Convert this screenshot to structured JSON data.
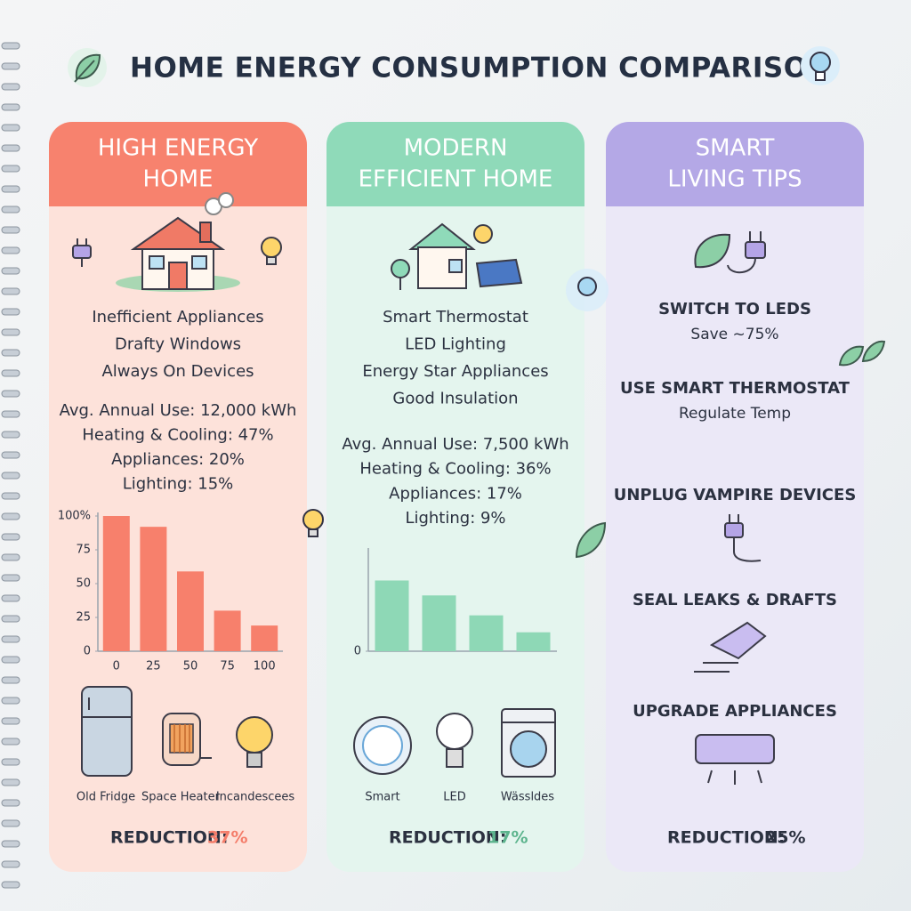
{
  "header": {
    "title": "HOME ENERGY CONSUMPTION COMPARISON"
  },
  "panels": [
    {
      "title_lines": [
        "HIGH ENERGY",
        "HOME"
      ],
      "features": [
        "Inefficient Appliances",
        "Drafty Windows",
        "Always On Devices"
      ],
      "stats": [
        "Avg. Annual Use: 12,000 kWh",
        "Heating & Cooling: 47%",
        "Appliances: 20%",
        "Lighting: 15%"
      ],
      "chart": {
        "type": "bar",
        "categories": [
          "0",
          "25",
          "50",
          "75",
          "100"
        ],
        "values": [
          100,
          92,
          59,
          30,
          19
        ],
        "color": "#f7806c",
        "ylim": [
          0,
          100
        ],
        "yticks": [
          0,
          25,
          50,
          75,
          {
            "value": 100,
            "label": "100%"
          }
        ]
      },
      "icons": [
        "Old Fridge",
        "Space Heater",
        "Incandescees"
      ],
      "reduction_label": "REDUCTION:",
      "reduction_value": "37%"
    },
    {
      "title_lines": [
        "MODERN",
        "EFFICIENT HOME"
      ],
      "features": [
        "Smart Thermostat",
        "LED Lighting",
        "Energy Star Appliances",
        "Good Insulation"
      ],
      "stats": [
        "Avg. Annual Use: 7,500 kWh",
        "Heating & Cooling: 36%",
        "Appliances: 17%",
        "Lighting: 9%"
      ],
      "chart": {
        "type": "bar",
        "categories": [
          null,
          null,
          null,
          null
        ],
        "values": [
          71,
          56,
          36,
          19
        ],
        "color": "#8ed8b6",
        "ylim": [
          0,
          100
        ],
        "yticks": [
          0
        ]
      },
      "icons": [
        "Smart",
        "LED",
        "Wässldes"
      ],
      "reduction_label": "REDUCTION:",
      "reduction_value": "17%"
    },
    {
      "title_lines": [
        "SMART",
        "LIVING TIPS"
      ],
      "tips": [
        {
          "title": "SWITCH TO LEDS",
          "note": "Save ~75%"
        },
        {
          "title": "USE SMART THERMOSTAT",
          "note": "Regulate Temp"
        },
        {
          "title": "UNPLUG VAMPIRE DEVICES"
        },
        {
          "title": "SEAL LEAKS & DRAFTS"
        },
        {
          "title": "UPGRADE APPLIANCES"
        }
      ],
      "reduction_label": "REDUCTION:",
      "reduction_value": "25%"
    }
  ]
}
